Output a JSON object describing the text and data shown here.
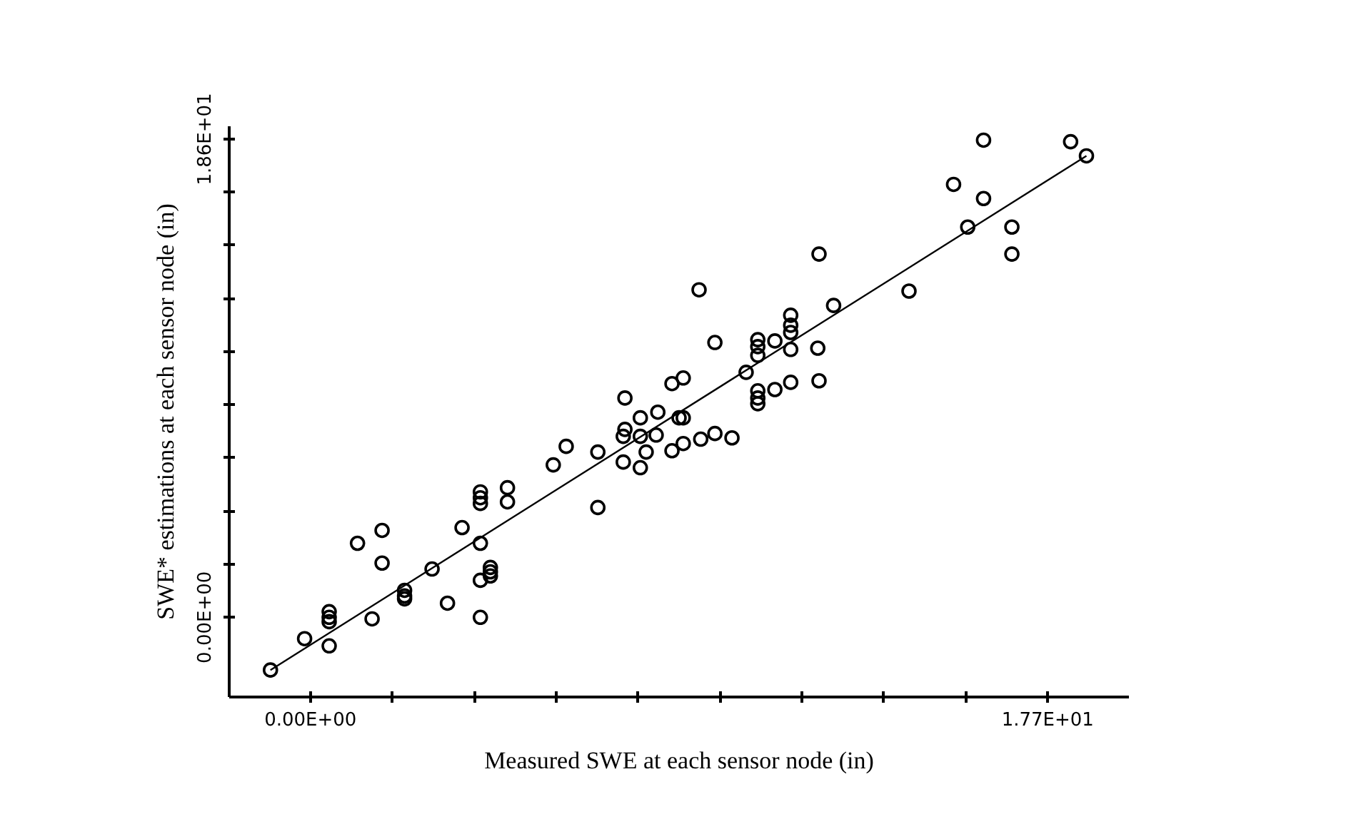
{
  "chart_data": {
    "type": "scatter",
    "xlabel": "Measured SWE at each sensor node (in)",
    "ylabel": "SWE* estimations at each sensor node (in)",
    "xlim": [
      -1.95,
      19.65
    ],
    "ylim": [
      -3.1,
      19.1
    ],
    "xticks": [
      {
        "value": 0,
        "label": "0.00E+00"
      },
      {
        "value": 1.967,
        "label": null
      },
      {
        "value": 3.933,
        "label": null
      },
      {
        "value": 5.9,
        "label": null
      },
      {
        "value": 7.867,
        "label": null
      },
      {
        "value": 9.833,
        "label": null
      },
      {
        "value": 11.8,
        "label": null
      },
      {
        "value": 13.767,
        "label": null
      },
      {
        "value": 15.733,
        "label": null
      },
      {
        "value": 17.7,
        "label": "1.77E+01"
      }
    ],
    "yticks": [
      {
        "value": 0,
        "label": "0.00E+00"
      },
      {
        "value": 2.067,
        "label": null
      },
      {
        "value": 4.133,
        "label": null
      },
      {
        "value": 6.2,
        "label": null
      },
      {
        "value": 8.267,
        "label": null
      },
      {
        "value": 10.333,
        "label": null
      },
      {
        "value": 12.4,
        "label": null
      },
      {
        "value": 14.467,
        "label": null
      },
      {
        "value": 16.533,
        "label": null
      },
      {
        "value": 18.6,
        "label": "1.86E+01"
      }
    ],
    "grid": false,
    "line_style": "solid",
    "series": [
      {
        "color": "#000000",
        "marker": "circle",
        "x": [
          -0.96,
          -0.14,
          0.45,
          0.45,
          0.45,
          0.45,
          1.48,
          1.13,
          1.72,
          1.72,
          2.26,
          2.26,
          2.26,
          2.92,
          3.29,
          3.64,
          4.08,
          4.08,
          4.08,
          4.32,
          4.32,
          4.32,
          4.08,
          4.08,
          4.08,
          4.73,
          4.73,
          5.83,
          6.14,
          6.9,
          6.9,
          7.51,
          7.51,
          7.92,
          7.92,
          8.06,
          8.3,
          8.68,
          8.34,
          8.95,
          8.95,
          9.37,
          9.71,
          10.12,
          8.68,
          8.95,
          9.71,
          9.33,
          10.74,
          10.74,
          10.74,
          10.46,
          10.74,
          10.74,
          10.74,
          11.15,
          11.53,
          11.53,
          11.53,
          11.53,
          11.15,
          11.53,
          12.18,
          12.21,
          12.21,
          12.56,
          14.37,
          15.44,
          16.16,
          16.16,
          15.78,
          16.84,
          16.84,
          18.25,
          18.63,
          7.55,
          7.92,
          7.55,
          8.85
        ],
        "values": [
          -2.05,
          -0.83,
          -1.11,
          0.22,
          0.0,
          -0.17,
          -0.06,
          2.88,
          3.38,
          2.11,
          1.05,
          0.83,
          0.72,
          1.88,
          0.55,
          3.49,
          2.88,
          0.0,
          1.44,
          1.94,
          1.77,
          1.61,
          4.88,
          4.65,
          4.43,
          5.04,
          4.49,
          5.93,
          6.65,
          6.43,
          4.27,
          7.04,
          6.04,
          7.04,
          5.82,
          6.43,
          7.09,
          6.48,
          7.98,
          7.76,
          6.76,
          6.93,
          7.15,
          6.98,
          9.09,
          9.31,
          10.69,
          12.74,
          10.8,
          10.53,
          10.19,
          9.53,
          8.81,
          8.53,
          8.31,
          8.86,
          9.14,
          11.75,
          11.36,
          11.08,
          10.75,
          10.42,
          10.47,
          9.2,
          14.13,
          12.13,
          12.69,
          16.84,
          18.56,
          16.29,
          15.18,
          15.18,
          14.13,
          18.5,
          17.95,
          8.53,
          7.76,
          7.31,
          7.76
        ]
      },
      {
        "type": "line",
        "color": "#000000",
        "x": [
          -0.96,
          18.63
        ],
        "values": [
          -2.05,
          17.95
        ]
      }
    ]
  }
}
